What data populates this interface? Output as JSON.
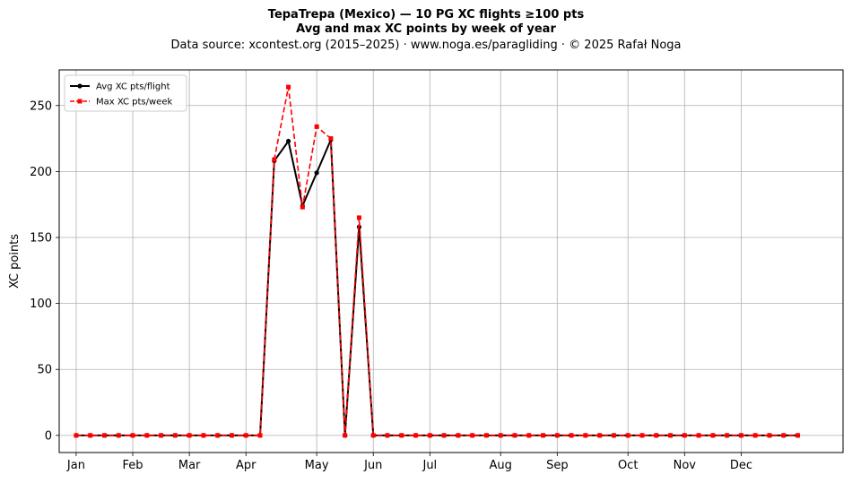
{
  "header": {
    "title": "TepaTrepa (Mexico)  —  10 PG XC flights ≥100 pts",
    "subtitle": "Avg and max XC points by week of year",
    "source": "Data source: xcontest.org (2015–2025)  ·  www.noga.es/paragliding  ·  © 2025 Rafał Noga"
  },
  "chart_data": {
    "type": "line",
    "title": "TepaTrepa (Mexico)  —  10 PG XC flights ≥100 pts",
    "subtitle": "Avg and max XC points by week of year",
    "xlabel": "",
    "ylabel": "XC points",
    "x": [
      1,
      2,
      3,
      4,
      5,
      6,
      7,
      8,
      9,
      10,
      11,
      12,
      13,
      14,
      15,
      16,
      17,
      18,
      19,
      20,
      21,
      22,
      23,
      24,
      25,
      26,
      27,
      28,
      29,
      30,
      31,
      32,
      33,
      34,
      35,
      36,
      37,
      38,
      39,
      40,
      41,
      42,
      43,
      44,
      45,
      46,
      47,
      48,
      49,
      50,
      51,
      52
    ],
    "xlim": [
      -0.2,
      55.2
    ],
    "ylim": [
      -13,
      277
    ],
    "xticks": [
      {
        "pos": 1,
        "label": "Jan"
      },
      {
        "pos": 5,
        "label": "Feb"
      },
      {
        "pos": 9,
        "label": "Mar"
      },
      {
        "pos": 13,
        "label": "Apr"
      },
      {
        "pos": 18,
        "label": "May"
      },
      {
        "pos": 22,
        "label": "Jun"
      },
      {
        "pos": 26,
        "label": "Jul"
      },
      {
        "pos": 31,
        "label": "Aug"
      },
      {
        "pos": 35,
        "label": "Sep"
      },
      {
        "pos": 40,
        "label": "Oct"
      },
      {
        "pos": 44,
        "label": "Nov"
      },
      {
        "pos": 48,
        "label": "Dec"
      }
    ],
    "yticks": [
      0,
      50,
      100,
      150,
      200,
      250
    ],
    "grid": true,
    "legend_position": "top-left",
    "series": [
      {
        "name": "Avg XC pts/flight",
        "color": "#000000",
        "style": "solid",
        "marker": "circle",
        "values": [
          0,
          0,
          0,
          0,
          0,
          0,
          0,
          0,
          0,
          0,
          0,
          0,
          0,
          0,
          208,
          223,
          174,
          199,
          224,
          0,
          158,
          0,
          0,
          0,
          0,
          0,
          0,
          0,
          0,
          0,
          0,
          0,
          0,
          0,
          0,
          0,
          0,
          0,
          0,
          0,
          0,
          0,
          0,
          0,
          0,
          0,
          0,
          0,
          0,
          0,
          0,
          0
        ]
      },
      {
        "name": "Max XC pts/week",
        "color": "#ff0000",
        "style": "dashed",
        "marker": "square",
        "values": [
          0,
          0,
          0,
          0,
          0,
          0,
          0,
          0,
          0,
          0,
          0,
          0,
          0,
          0,
          209,
          264,
          173,
          234,
          225,
          0,
          165,
          0,
          0,
          0,
          0,
          0,
          0,
          0,
          0,
          0,
          0,
          0,
          0,
          0,
          0,
          0,
          0,
          0,
          0,
          0,
          0,
          0,
          0,
          0,
          0,
          0,
          0,
          0,
          0,
          0,
          0,
          0
        ]
      }
    ]
  }
}
